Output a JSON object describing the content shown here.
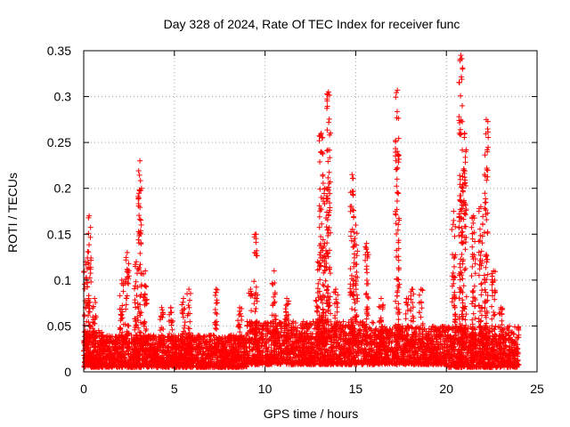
{
  "chart_data": {
    "type": "scatter",
    "title": "Day 328 of 2024, Rate Of TEC Index for receiver func",
    "xlabel": "GPS time / hours",
    "ylabel": "ROTI / TECUs",
    "xlim": [
      0,
      25
    ],
    "ylim": [
      0,
      0.35
    ],
    "xticks": [
      0,
      5,
      10,
      15,
      20,
      25
    ],
    "yticks": [
      0,
      0.05,
      0.1,
      0.15,
      0.2,
      0.25,
      0.3,
      0.35
    ],
    "xtick_labels": [
      "0",
      "5",
      "10",
      "15",
      "20",
      "25"
    ],
    "ytick_labels": [
      "0",
      "0.05",
      "0.1",
      "0.15",
      "0.2",
      "0.25",
      "0.3",
      "0.35"
    ],
    "grid": true,
    "marker": "+",
    "color": "#ff0000",
    "x_data_range": [
      0,
      24
    ],
    "baseline_band": {
      "segments": [
        {
          "x": [
            0,
            1
          ],
          "low": 0.005,
          "high": 0.045
        },
        {
          "x": [
            1,
            5
          ],
          "low": 0.005,
          "high": 0.04
        },
        {
          "x": [
            5,
            9
          ],
          "low": 0.005,
          "high": 0.04
        },
        {
          "x": [
            9,
            12
          ],
          "low": 0.008,
          "high": 0.055
        },
        {
          "x": [
            12,
            16
          ],
          "low": 0.008,
          "high": 0.055
        },
        {
          "x": [
            16,
            20
          ],
          "low": 0.008,
          "high": 0.05
        },
        {
          "x": [
            20,
            24
          ],
          "low": 0.005,
          "high": 0.05
        }
      ]
    },
    "peaks": [
      {
        "x": 0.1,
        "max": 0.12
      },
      {
        "x": 0.3,
        "max": 0.17
      },
      {
        "x": 0.6,
        "max": 0.08
      },
      {
        "x": 2.1,
        "max": 0.1
      },
      {
        "x": 2.4,
        "max": 0.13
      },
      {
        "x": 2.9,
        "max": 0.12
      },
      {
        "x": 3.1,
        "max": 0.23
      },
      {
        "x": 3.4,
        "max": 0.11
      },
      {
        "x": 4.3,
        "max": 0.07
      },
      {
        "x": 4.8,
        "max": 0.07
      },
      {
        "x": 5.5,
        "max": 0.08
      },
      {
        "x": 5.8,
        "max": 0.09
      },
      {
        "x": 7.3,
        "max": 0.09
      },
      {
        "x": 8.6,
        "max": 0.07
      },
      {
        "x": 9.2,
        "max": 0.09
      },
      {
        "x": 9.5,
        "max": 0.15
      },
      {
        "x": 10.5,
        "max": 0.11
      },
      {
        "x": 11.2,
        "max": 0.08
      },
      {
        "x": 12.9,
        "max": 0.12
      },
      {
        "x": 13.1,
        "max": 0.26
      },
      {
        "x": 13.3,
        "max": 0.2
      },
      {
        "x": 13.5,
        "max": 0.305
      },
      {
        "x": 13.9,
        "max": 0.09
      },
      {
        "x": 14.8,
        "max": 0.215
      },
      {
        "x": 15.0,
        "max": 0.16
      },
      {
        "x": 15.6,
        "max": 0.14
      },
      {
        "x": 16.4,
        "max": 0.08
      },
      {
        "x": 17.3,
        "max": 0.307
      },
      {
        "x": 17.8,
        "max": 0.08
      },
      {
        "x": 18.1,
        "max": 0.09
      },
      {
        "x": 18.6,
        "max": 0.09
      },
      {
        "x": 20.4,
        "max": 0.175
      },
      {
        "x": 20.8,
        "max": 0.345
      },
      {
        "x": 21.0,
        "max": 0.26
      },
      {
        "x": 21.5,
        "max": 0.17
      },
      {
        "x": 21.9,
        "max": 0.18
      },
      {
        "x": 22.2,
        "max": 0.275
      },
      {
        "x": 22.6,
        "max": 0.11
      },
      {
        "x": 23.0,
        "max": 0.07
      }
    ]
  }
}
